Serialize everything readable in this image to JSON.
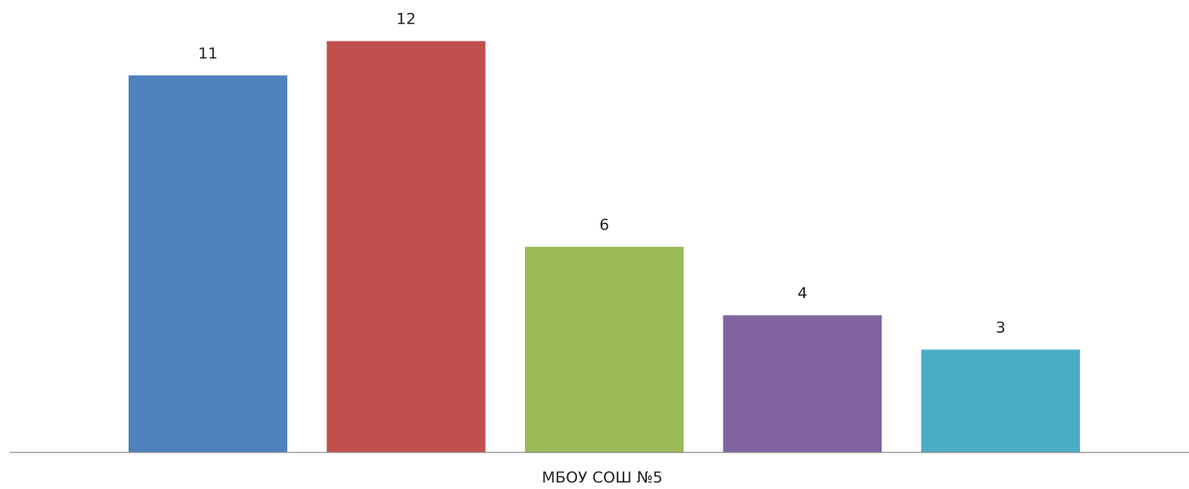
{
  "chart_data": {
    "type": "bar",
    "categories": [
      "МБОУ СОШ №5"
    ],
    "series": [
      {
        "values": [
          11
        ],
        "color": "#4f81bd"
      },
      {
        "values": [
          12
        ],
        "color": "#c0504d"
      },
      {
        "values": [
          6
        ],
        "color": "#9bbb59"
      },
      {
        "values": [
          4
        ],
        "color": "#8064a2"
      },
      {
        "values": [
          3
        ],
        "color": "#4bacc6"
      }
    ],
    "title": "",
    "xlabel": "",
    "ylabel": "",
    "ylim": [
      0,
      13
    ],
    "grid": false,
    "data_labels": true
  }
}
